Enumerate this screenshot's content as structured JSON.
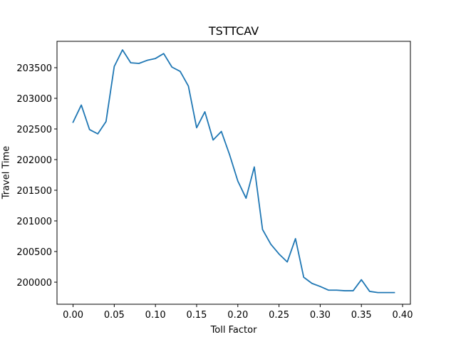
{
  "chart_data": {
    "type": "line",
    "title": "TSTTCAV",
    "xlabel": "Toll Factor",
    "ylabel": "Travel Time",
    "xlim": [
      -0.0195,
      0.4095
    ],
    "ylim": [
      199640,
      203930
    ],
    "grid": false,
    "x_ticks": [
      0.0,
      0.05,
      0.1,
      0.15,
      0.2,
      0.25,
      0.3,
      0.35,
      0.4
    ],
    "x_tick_labels": [
      "0.00",
      "0.05",
      "0.10",
      "0.15",
      "0.20",
      "0.25",
      "0.30",
      "0.35",
      "0.40"
    ],
    "y_ticks": [
      200000,
      200500,
      201000,
      201500,
      202000,
      202500,
      203000,
      203500
    ],
    "y_tick_labels": [
      "200000",
      "200500",
      "201000",
      "201500",
      "202000",
      "202500",
      "203000",
      "203500"
    ],
    "series": [
      {
        "color": "#1f77b4",
        "x": [
          0.0,
          0.01,
          0.02,
          0.03,
          0.04,
          0.05,
          0.06,
          0.07,
          0.08,
          0.09,
          0.1,
          0.11,
          0.12,
          0.13,
          0.14,
          0.15,
          0.16,
          0.17,
          0.18,
          0.19,
          0.2,
          0.21,
          0.22,
          0.23,
          0.24,
          0.25,
          0.26,
          0.27,
          0.28,
          0.29,
          0.3,
          0.31,
          0.32,
          0.33,
          0.34,
          0.35,
          0.36,
          0.37,
          0.38,
          0.39
        ],
        "values": [
          202610,
          202890,
          202490,
          202420,
          202620,
          203520,
          203790,
          203580,
          203570,
          203620,
          203650,
          203730,
          203510,
          203440,
          203200,
          202520,
          202780,
          202320,
          202460,
          202080,
          201650,
          201370,
          201880,
          200860,
          200620,
          200460,
          200330,
          200710,
          200080,
          199980,
          199930,
          199870,
          199870,
          199860,
          199860,
          200040,
          199850,
          199830,
          199830,
          199830
        ]
      }
    ]
  }
}
